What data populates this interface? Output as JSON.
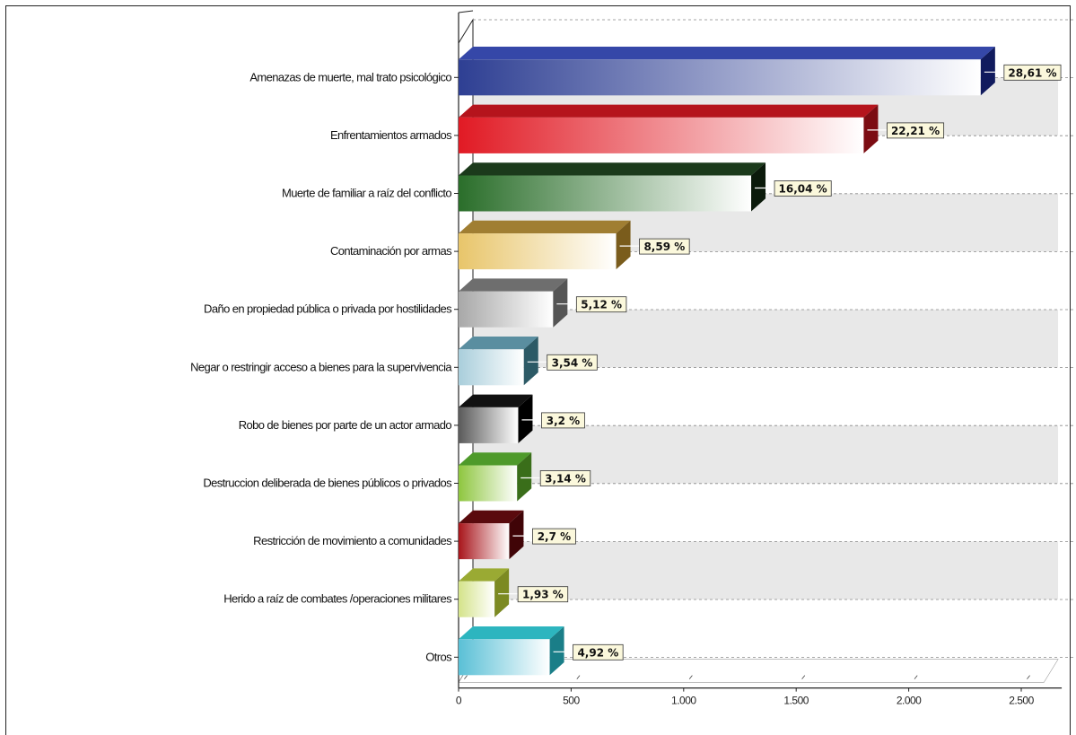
{
  "chart_data": {
    "type": "bar",
    "orientation": "horizontal",
    "style": "3d",
    "categories": [
      "Amenazas de muerte, mal trato psicológico",
      "Enfrentamientos armados",
      "Muerte de familiar a raíz del conflicto",
      "Contaminación por armas",
      "Daño en propiedad pública o privada por hostilidades",
      "Negar o restringir acceso a bienes para la supervivencia",
      "Robo de bienes por parte de un actor armado",
      "Destruccion deliberada de bienes públicos o privados",
      "Restricción de movimiento a comunidades",
      "Herido a raíz de combates /operaciones militares",
      "Otros"
    ],
    "series": [
      {
        "values": [
          2320,
          1800,
          1300,
          700,
          420,
          290,
          265,
          260,
          225,
          160,
          405
        ],
        "labels": [
          "28,61 %",
          "22,21 %",
          "16,04 %",
          "8,59 %",
          "5,12 %",
          "3,54 %",
          "3,2 %",
          "3,14 %",
          "2,7 %",
          "1,93 %",
          "4,92 %"
        ]
      }
    ],
    "colors": [
      "#2e3f93",
      "#e11a24",
      "#2a6e2a",
      "#e8c56a",
      "#a8a8a8",
      "#a9cedb",
      "#5a5a5a",
      "#8ec63f",
      "#a8151b",
      "#d4e38a",
      "#5ac0d6"
    ],
    "side_colors": [
      "#111b5e",
      "#7c0c12",
      "#0b1a0b",
      "#7a5c1c",
      "#555555",
      "#2c5a66",
      "#000000",
      "#3a6e1a",
      "#400407",
      "#7c8a22",
      "#1a7e88"
    ],
    "top_colors": [
      "#3547a8",
      "#b5141c",
      "#1b3a1b",
      "#a07e32",
      "#6e6e6e",
      "#5a8ea0",
      "#111111",
      "#4e9a2a",
      "#5a0a0d",
      "#9aaa33",
      "#2db5bf"
    ],
    "xlim": [
      0,
      2600
    ],
    "xticks": [
      0,
      500,
      1000,
      1500,
      2000,
      2500
    ],
    "xtick_labels": [
      "0",
      "500",
      "1.000",
      "1.500",
      "2.000",
      "2.500"
    ],
    "grid": true,
    "legend": false
  }
}
